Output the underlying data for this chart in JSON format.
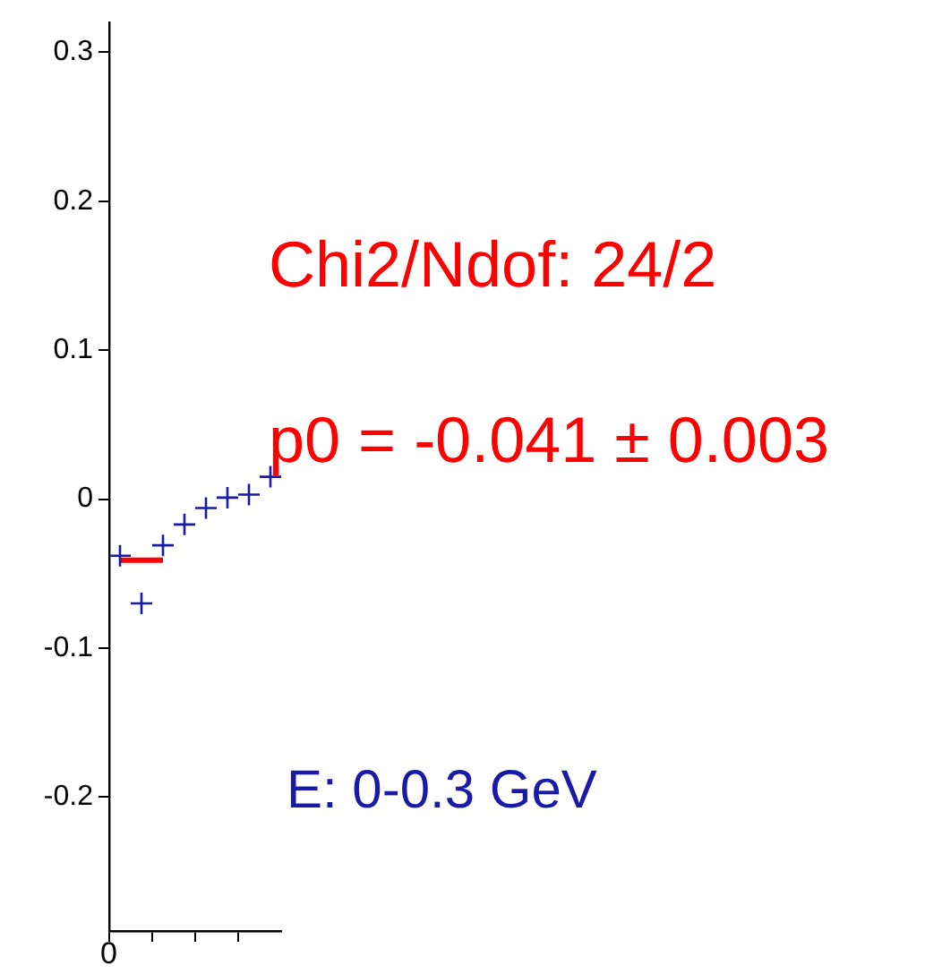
{
  "chart_data": {
    "type": "scatter",
    "categories": [
      null,
      null,
      null,
      null,
      null,
      null,
      null,
      null
    ],
    "ylim": [
      -0.29,
      0.32
    ],
    "yticks": [
      -0.2,
      -0.1,
      0,
      0.1,
      0.2,
      0.3
    ],
    "series": [
      {
        "marker": "cross",
        "color": "#1a1aa8",
        "values": [
          -0.038,
          -0.07,
          -0.031,
          -0.017,
          -0.006,
          0.001,
          0.003,
          0.015
        ]
      },
      {
        "type": "line",
        "color": "#ff0000",
        "values": [
          -0.041,
          -0.041,
          -0.041,
          null,
          null,
          null,
          null,
          null
        ]
      }
    ],
    "grid": false,
    "legend": false,
    "annotations": [
      "Chi2/Ndof: 24/2",
      "p0 = -0.041 ± 0.003",
      "E: 0-0.3 GeV",
      "0"
    ]
  }
}
